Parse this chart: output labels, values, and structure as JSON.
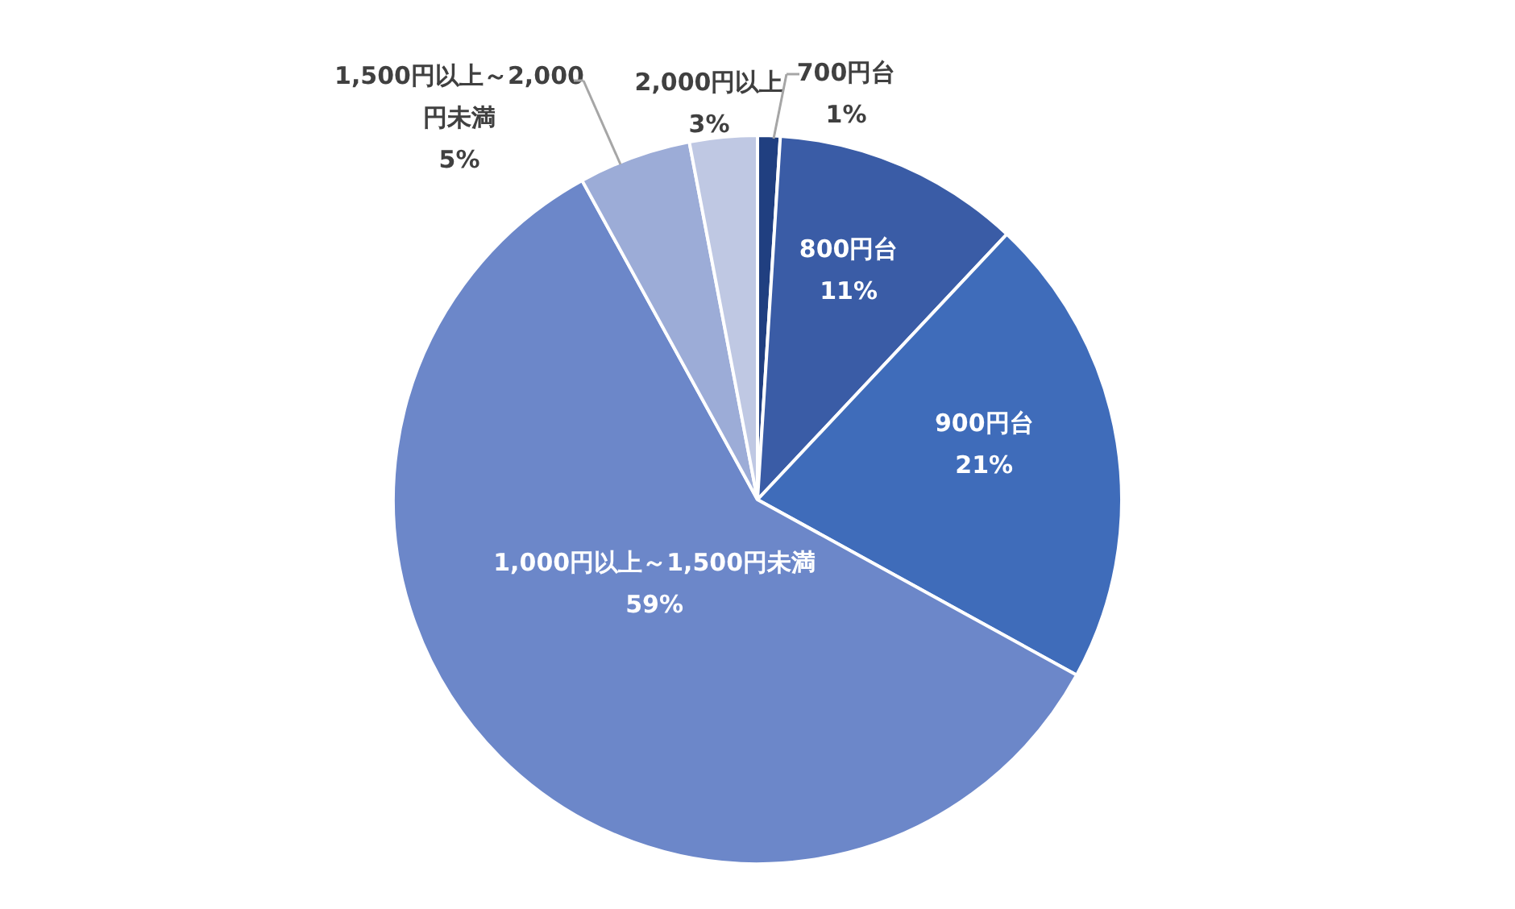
{
  "chart_data": {
    "type": "pie",
    "categories": [
      "700円台",
      "800円台",
      "900円台",
      "1,000円以上～1,500円未満",
      "1,500円以上～2,000円未満",
      "2,000円以上"
    ],
    "values": [
      1,
      11,
      21,
      59,
      5,
      3
    ],
    "value_labels": [
      "1%",
      "11%",
      "21%",
      "59%",
      "5%",
      "3%"
    ],
    "colors": [
      "#203f80",
      "#3a5ca6",
      "#3f6cba",
      "#6c87c9",
      "#9cacd7",
      "#bfc8e3"
    ]
  }
}
